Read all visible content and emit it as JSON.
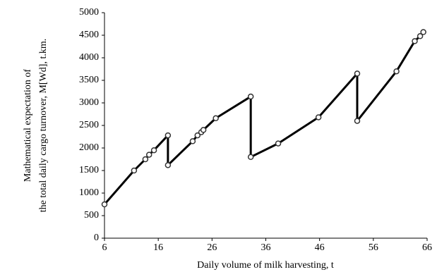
{
  "chart_data": {
    "type": "line",
    "x_label": "Daily volume of milk harvesting, t",
    "y_label": [
      "Mathematical expectation of",
      "the total daily cargo turnover, M[Wd], t.km."
    ],
    "xlim": [
      6,
      66
    ],
    "xticks": [
      6,
      16,
      26,
      36,
      46,
      56,
      66
    ],
    "ylim": [
      0,
      5000
    ],
    "yticks": [
      0,
      500,
      1000,
      1500,
      2000,
      2500,
      3000,
      3500,
      4000,
      4500,
      5000
    ],
    "series": [
      {
        "color": "#000000",
        "x": [
          6,
          11.5,
          13.6,
          14.3,
          15.2,
          17.8,
          17.8,
          22.4,
          23.3,
          24.0,
          24.4,
          26.7,
          33.2,
          33.2,
          38.3,
          45.8,
          53.0,
          53.0,
          60.3,
          63.7,
          64.7,
          65.3
        ],
        "values": [
          750,
          1500,
          1750,
          1850,
          1950,
          2280,
          1620,
          2150,
          2280,
          2350,
          2400,
          2660,
          3140,
          1800,
          2100,
          2680,
          3650,
          2600,
          3700,
          4370,
          4480,
          4570
        ]
      }
    ]
  }
}
